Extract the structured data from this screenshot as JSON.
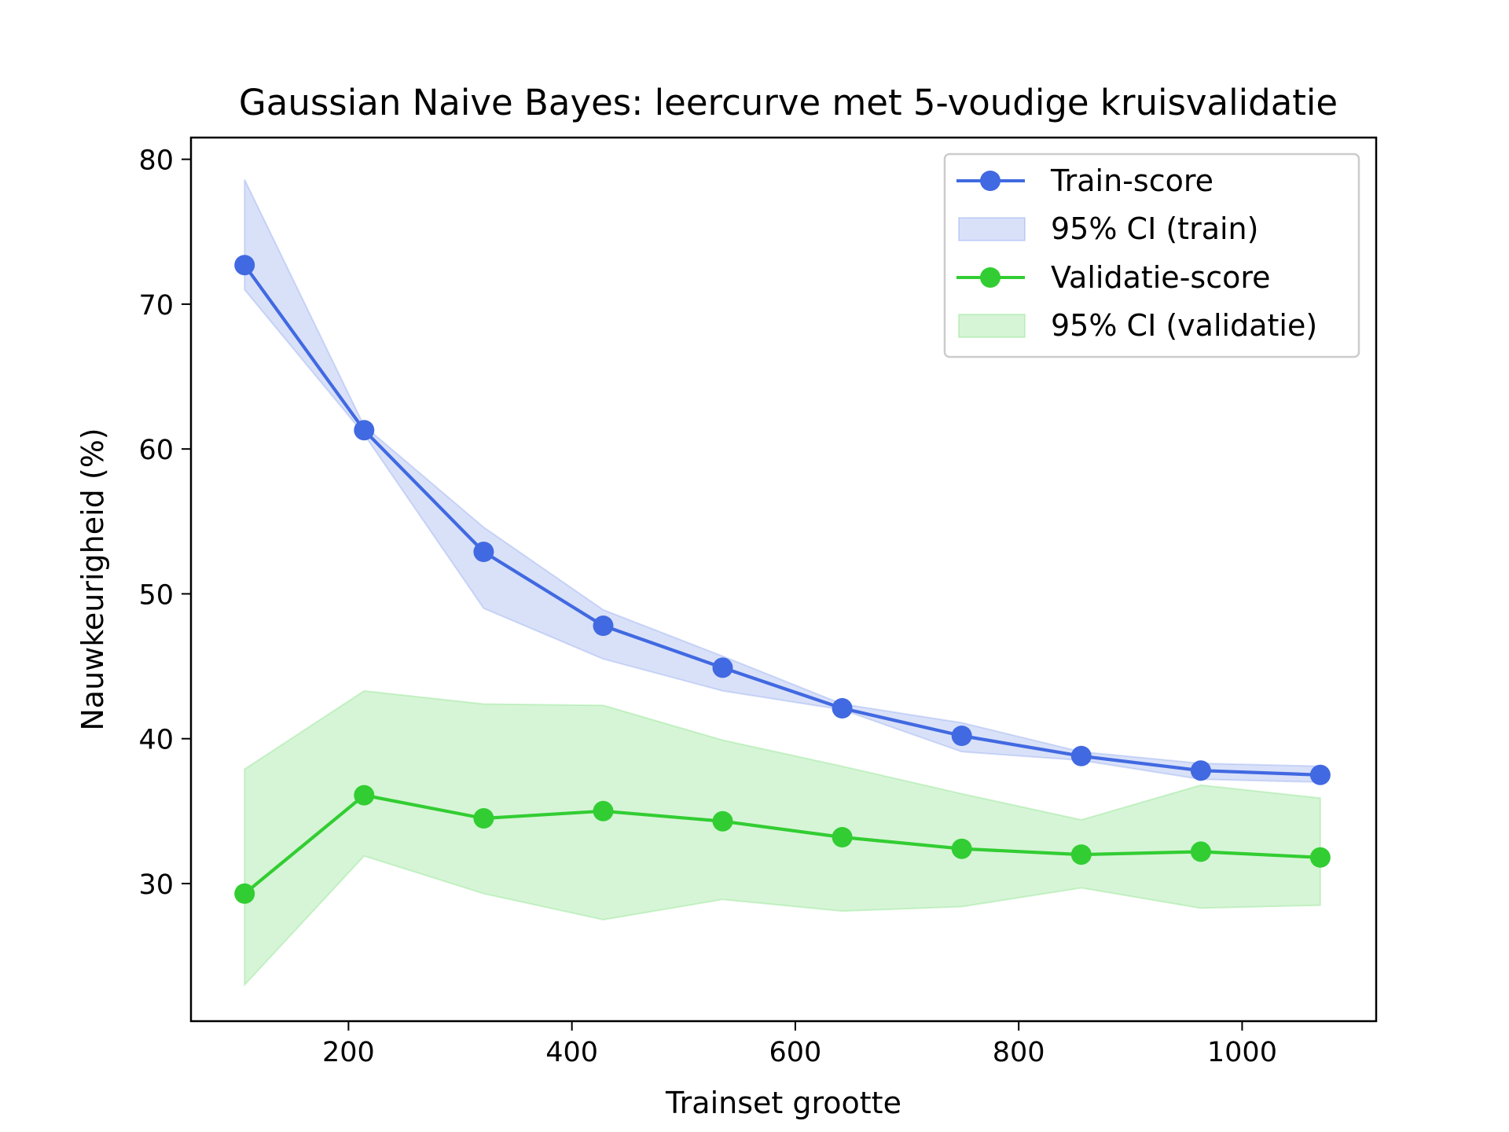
{
  "chart_data": {
    "type": "line",
    "title": "Gaussian Naive Bayes: leercurve met 5-voudige kruisvalidatie",
    "xlabel": "Trainset grootte",
    "ylabel": "Nauwkeurigheid (%)",
    "xlim": [
      59,
      1120
    ],
    "ylim": [
      20.5,
      81.5
    ],
    "xticks": [
      200,
      400,
      600,
      800,
      1000
    ],
    "yticks": [
      30,
      40,
      50,
      60,
      70,
      80
    ],
    "grid": false,
    "legend_position": "top-right",
    "x": [
      107,
      214,
      321,
      428,
      535,
      642,
      749,
      856,
      963,
      1070
    ],
    "series": [
      {
        "name": "Train-score",
        "color": "#4169e1",
        "values": [
          72.7,
          61.3,
          52.9,
          47.8,
          44.9,
          42.1,
          40.2,
          38.8,
          37.8,
          37.5
        ],
        "ci_name": "95% CI (train)",
        "ci_lower": [
          71.0,
          61.0,
          49.0,
          45.5,
          43.3,
          42.0,
          39.1,
          38.5,
          37.2,
          37.0
        ],
        "ci_upper": [
          78.6,
          61.6,
          54.6,
          48.9,
          45.7,
          42.4,
          41.1,
          39.1,
          38.3,
          38.1
        ]
      },
      {
        "name": "Validatie-score",
        "color": "#32cd32",
        "values": [
          29.3,
          36.1,
          34.5,
          35.0,
          34.3,
          33.2,
          32.4,
          32.0,
          32.2,
          31.8
        ],
        "ci_name": "95% CI (validatie)",
        "ci_lower": [
          23.0,
          31.9,
          29.3,
          27.5,
          28.9,
          28.1,
          28.4,
          29.7,
          28.3,
          28.5
        ],
        "ci_upper": [
          37.9,
          43.3,
          42.4,
          42.3,
          39.9,
          38.1,
          36.2,
          34.4,
          36.8,
          35.9
        ]
      }
    ]
  }
}
